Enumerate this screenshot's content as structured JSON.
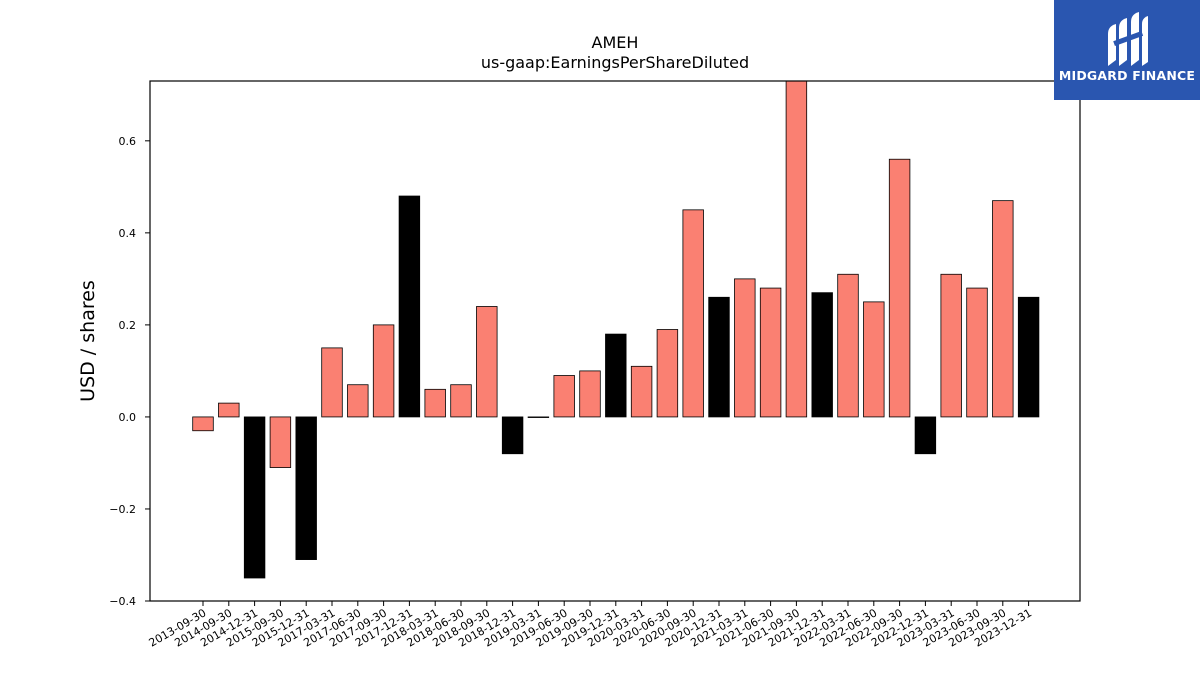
{
  "chart_data": {
    "type": "bar",
    "title": "AMEH",
    "subtitle": "us-gaap:EarningsPerShareDiluted",
    "xlabel": "",
    "ylabel": "USD / shares",
    "ylim": [
      -0.4,
      0.73
    ],
    "yticks": [
      -0.4,
      -0.2,
      0.0,
      0.2,
      0.4,
      0.6
    ],
    "yticklabels": [
      "−0.4",
      "−0.2",
      "0.0",
      "0.2",
      "0.4",
      "0.6"
    ],
    "grid": false,
    "categories": [
      "2013-09-30",
      "2014-09-30",
      "2014-12-31",
      "2015-09-30",
      "2015-12-31",
      "2017-03-31",
      "2017-06-30",
      "2017-09-30",
      "2017-12-31",
      "2018-03-31",
      "2018-06-30",
      "2018-09-30",
      "2018-12-31",
      "2019-03-31",
      "2019-06-30",
      "2019-09-30",
      "2019-12-31",
      "2020-03-31",
      "2020-06-30",
      "2020-09-30",
      "2020-12-31",
      "2021-03-31",
      "2021-06-30",
      "2021-09-30",
      "2021-12-31",
      "2022-03-31",
      "2022-06-30",
      "2022-09-30",
      "2022-12-31",
      "2023-03-31",
      "2023-06-30",
      "2023-09-30",
      "2023-12-31"
    ],
    "values": [
      -0.03,
      0.03,
      -0.35,
      -0.11,
      -0.31,
      0.15,
      0.07,
      0.2,
      0.48,
      0.06,
      0.07,
      0.24,
      -0.08,
      0.0,
      0.09,
      0.1,
      0.18,
      0.11,
      0.19,
      0.45,
      0.26,
      0.3,
      0.28,
      0.74,
      0.27,
      0.31,
      0.25,
      0.56,
      -0.08,
      0.31,
      0.28,
      0.47,
      0.26
    ],
    "bar_colors": [
      "#fa8072",
      "#fa8072",
      "#000000",
      "#fa8072",
      "#000000",
      "#fa8072",
      "#fa8072",
      "#fa8072",
      "#000000",
      "#fa8072",
      "#fa8072",
      "#fa8072",
      "#000000",
      "#fa8072",
      "#fa8072",
      "#fa8072",
      "#000000",
      "#fa8072",
      "#fa8072",
      "#fa8072",
      "#000000",
      "#fa8072",
      "#fa8072",
      "#fa8072",
      "#000000",
      "#fa8072",
      "#fa8072",
      "#fa8072",
      "#000000",
      "#fa8072",
      "#fa8072",
      "#fa8072",
      "#000000"
    ]
  },
  "logo": {
    "text": "MIDGARD FINANCE",
    "background": "#2a56b0",
    "icon": "midgard-logo-icon"
  }
}
